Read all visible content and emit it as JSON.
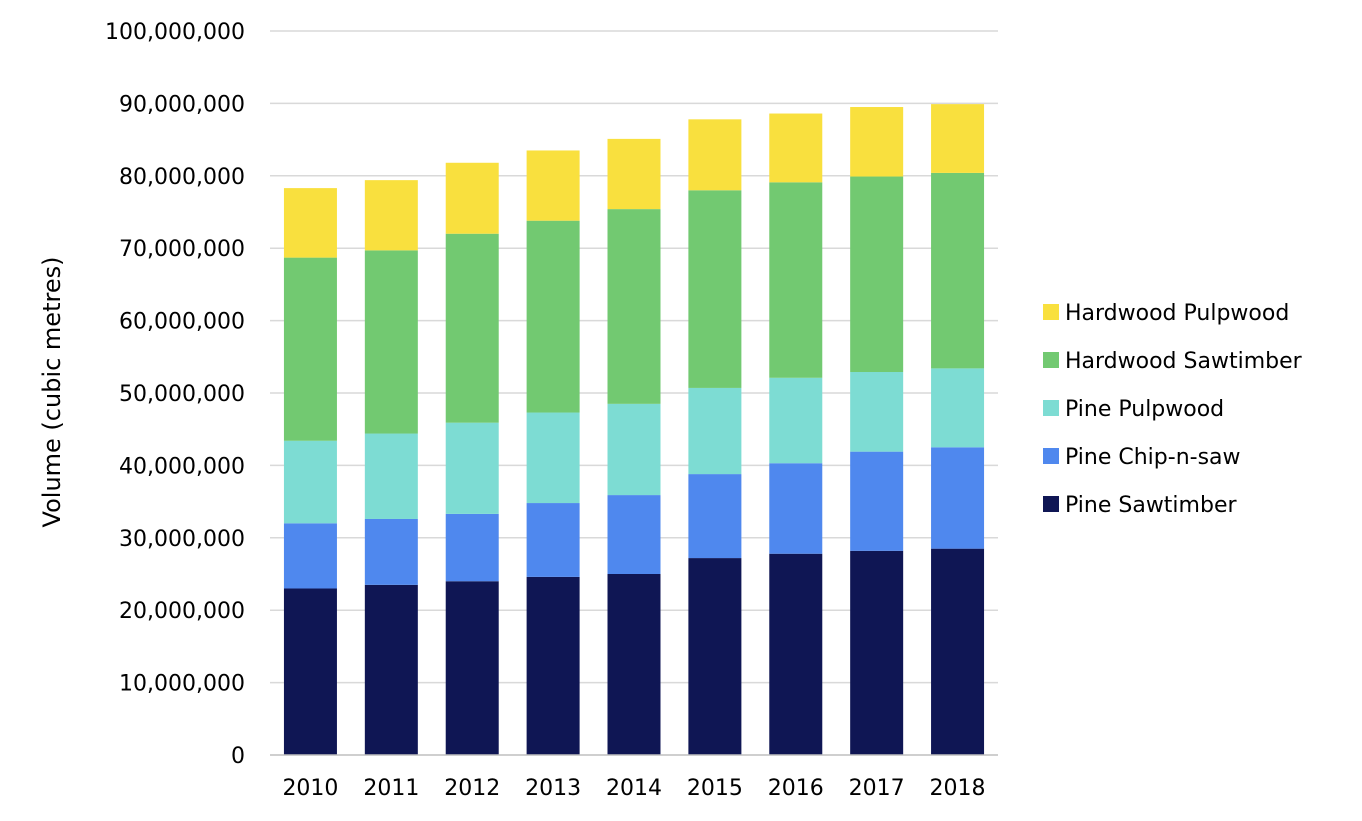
{
  "chart_data": {
    "type": "bar",
    "stacked": true,
    "title": "",
    "xlabel": "",
    "ylabel": "Volume (cubic metres)",
    "ylim": [
      0,
      100000000
    ],
    "y_ticks": [
      "0",
      "10,000,000",
      "20,000,000",
      "30,000,000",
      "40,000,000",
      "50,000,000",
      "60,000,000",
      "70,000,000",
      "80,000,000",
      "90,000,000",
      "100,000,000"
    ],
    "y_tick_values": [
      0,
      10000000,
      20000000,
      30000000,
      40000000,
      50000000,
      60000000,
      70000000,
      80000000,
      90000000,
      100000000
    ],
    "grid": true,
    "legend_position": "right",
    "categories": [
      "2010",
      "2011",
      "2012",
      "2013",
      "2014",
      "2015",
      "2016",
      "2017",
      "2018"
    ],
    "series": [
      {
        "name": "Pine Sawtimber",
        "color": "#0f1654",
        "values": [
          23000000,
          23500000,
          24000000,
          24600000,
          25000000,
          27200000,
          27800000,
          28200000,
          28500000
        ]
      },
      {
        "name": "Pine Chip-n-saw",
        "color": "#4f88ee",
        "values": [
          9000000,
          9100000,
          9300000,
          10200000,
          10900000,
          11600000,
          12500000,
          13700000,
          14000000
        ]
      },
      {
        "name": "Pine Pulpwood",
        "color": "#7ddcd3",
        "values": [
          11400000,
          11800000,
          12600000,
          12500000,
          12600000,
          11900000,
          11800000,
          11000000,
          10900000
        ]
      },
      {
        "name": "Hardwood Sawtimber",
        "color": "#72c971",
        "values": [
          25300000,
          25300000,
          26100000,
          26500000,
          26900000,
          27300000,
          27000000,
          27000000,
          27000000
        ]
      },
      {
        "name": "Hardwood Pulpwood",
        "color": "#f9e03e",
        "values": [
          9600000,
          9700000,
          9800000,
          9700000,
          9700000,
          9800000,
          9500000,
          9600000,
          9500000
        ]
      }
    ],
    "legend_order": [
      "Hardwood Pulpwood",
      "Hardwood Sawtimber",
      "Pine Pulpwood",
      "Pine Chip-n-saw",
      "Pine Sawtimber"
    ]
  },
  "colors": {
    "gridline": "#d9d9d9",
    "axis": "#bfbfbf"
  }
}
